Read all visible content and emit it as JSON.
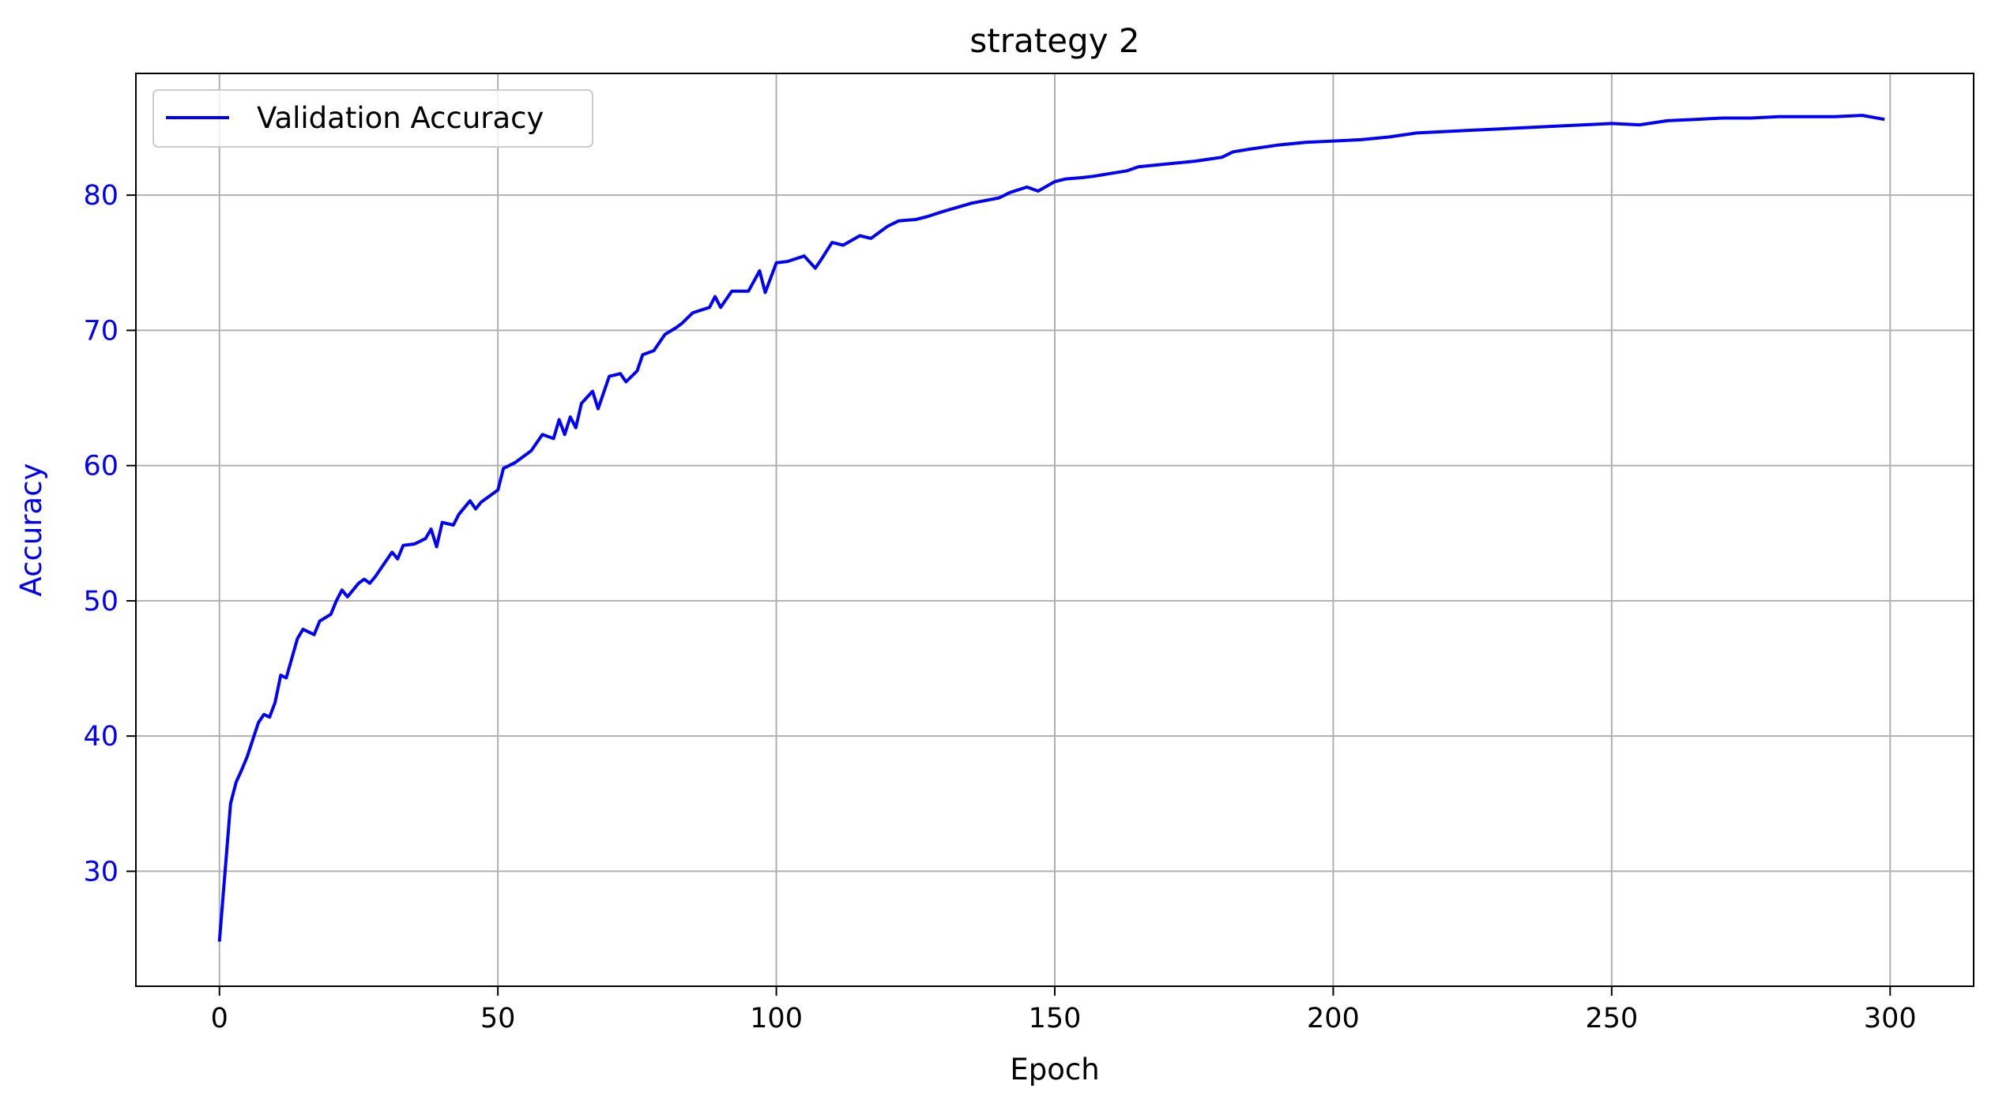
{
  "chart_data": {
    "type": "line",
    "title": "strategy 2",
    "xlabel": "Epoch",
    "ylabel": "Accuracy",
    "xlim": [
      -15,
      315
    ],
    "ylim": [
      21.5,
      89.0
    ],
    "xticks": [
      0,
      50,
      100,
      150,
      200,
      250,
      300
    ],
    "yticks": [
      30,
      40,
      50,
      60,
      70,
      80
    ],
    "grid": true,
    "legend_position": "top-left",
    "colors": {
      "series": "#0000ff",
      "ylabel": "#0000ff",
      "yticks": "#0000ff",
      "grid": "#b0b0b0",
      "axes": "#000000"
    },
    "series": [
      {
        "name": "Validation Accuracy",
        "x": [
          0,
          2,
          3,
          4,
          5,
          7,
          8,
          9,
          10,
          11,
          12,
          14,
          15,
          17,
          18,
          20,
          21,
          22,
          23,
          25,
          26,
          27,
          28,
          30,
          31,
          32,
          33,
          35,
          36,
          37,
          38,
          39,
          40,
          42,
          43,
          45,
          46,
          47,
          48,
          50,
          51,
          52,
          53,
          55,
          56,
          58,
          60,
          61,
          62,
          63,
          64,
          65,
          67,
          68,
          70,
          71,
          72,
          73,
          75,
          76,
          78,
          80,
          82,
          83,
          85,
          88,
          89,
          90,
          92,
          95,
          97,
          98,
          100,
          102,
          105,
          107,
          108,
          110,
          112,
          115,
          117,
          120,
          122,
          125,
          127,
          130,
          135,
          140,
          142,
          145,
          147,
          150,
          152,
          155,
          157,
          160,
          163,
          165,
          170,
          175,
          180,
          182,
          185,
          190,
          195,
          200,
          205,
          210,
          215,
          220,
          225,
          230,
          235,
          240,
          245,
          250,
          255,
          260,
          265,
          270,
          275,
          280,
          285,
          290,
          295,
          299
        ],
        "values": [
          24.8,
          35.0,
          36.6,
          37.5,
          38.5,
          41.0,
          41.6,
          41.4,
          42.5,
          44.5,
          44.3,
          47.2,
          47.9,
          47.5,
          48.5,
          49.0,
          50.0,
          50.8,
          50.3,
          51.3,
          51.6,
          51.3,
          51.8,
          53.0,
          53.6,
          53.1,
          54.1,
          54.2,
          54.4,
          54.6,
          55.3,
          54.0,
          55.8,
          55.6,
          56.4,
          57.4,
          56.8,
          57.3,
          57.6,
          58.2,
          59.8,
          60.0,
          60.2,
          60.8,
          61.1,
          62.3,
          62.0,
          63.4,
          62.3,
          63.6,
          62.8,
          64.6,
          65.5,
          64.2,
          66.6,
          66.7,
          66.8,
          66.2,
          67.0,
          68.2,
          68.5,
          69.7,
          70.2,
          70.5,
          71.3,
          71.7,
          72.5,
          71.7,
          72.9,
          72.9,
          74.4,
          72.8,
          75.0,
          75.1,
          75.5,
          74.6,
          75.2,
          76.5,
          76.3,
          77.0,
          76.8,
          77.7,
          78.1,
          78.2,
          78.4,
          78.8,
          79.4,
          79.8,
          80.2,
          80.6,
          80.3,
          81.0,
          81.2,
          81.3,
          81.4,
          81.6,
          81.8,
          82.1,
          82.3,
          82.5,
          82.8,
          83.2,
          83.4,
          83.7,
          83.9,
          84.0,
          84.1,
          84.3,
          84.6,
          84.7,
          84.8,
          84.9,
          85.0,
          85.1,
          85.2,
          85.3,
          85.2,
          85.5,
          85.6,
          85.7,
          85.7,
          85.8,
          85.8,
          85.8,
          85.9,
          85.6
        ]
      }
    ]
  }
}
